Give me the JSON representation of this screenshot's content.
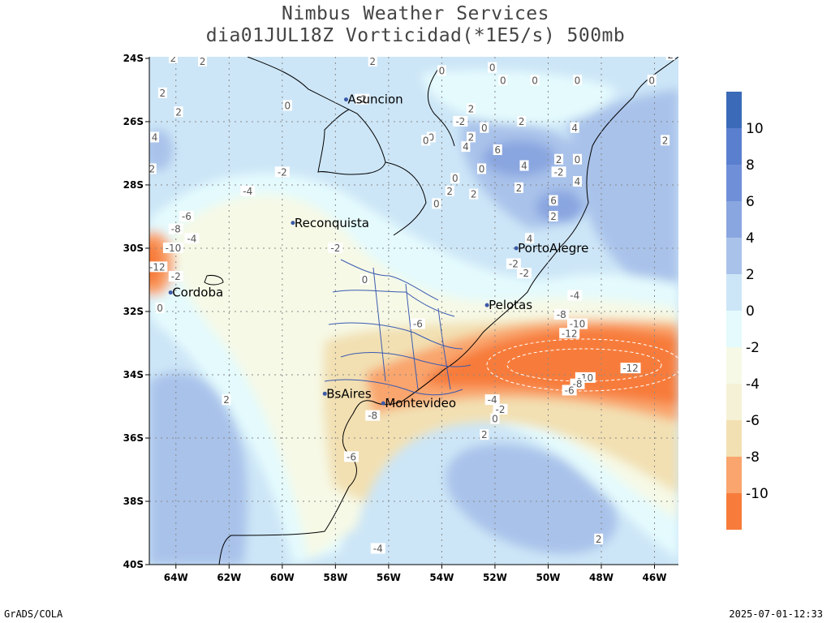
{
  "title": {
    "line1": "Nimbus Weather Services",
    "line2": "dia01JUL18Z Vorticidad(*1E5/s) 500mb"
  },
  "footer": {
    "left": "GrADS/COLA",
    "right": "2025-07-01-12:33"
  },
  "axes": {
    "lat_ticks": [
      "24S",
      "26S",
      "28S",
      "30S",
      "32S",
      "34S",
      "36S",
      "38S",
      "40S"
    ],
    "lon_ticks": [
      "64W",
      "62W",
      "60W",
      "58W",
      "56W",
      "54W",
      "52W",
      "50W",
      "48W",
      "46W"
    ]
  },
  "cities": [
    {
      "name": "Asuncion",
      "lon": -57.6,
      "lat": -25.3
    },
    {
      "name": "Reconquista",
      "lon": -59.6,
      "lat": -29.2
    },
    {
      "name": "Cordoba",
      "lon": -64.2,
      "lat": -31.4
    },
    {
      "name": "PortoAlegre",
      "lon": -51.2,
      "lat": -30.0
    },
    {
      "name": "Pelotas",
      "lon": -52.3,
      "lat": -31.8
    },
    {
      "name": "BsAires",
      "lon": -58.4,
      "lat": -34.6
    },
    {
      "name": "Montevideo",
      "lon": -56.2,
      "lat": -34.9
    }
  ],
  "colorbar": {
    "labels": [
      "10",
      "8",
      "6",
      "4",
      "2",
      "0",
      "-2",
      "-4",
      "-6",
      "-8",
      "-10"
    ],
    "colors": [
      "#3b6ab8",
      "#5a7fcf",
      "#6f8fd8",
      "#8aa6e0",
      "#a9c2ea",
      "#cde6f7",
      "#e4fafd",
      "#f6f9e6",
      "#f5f1d6",
      "#f2e0b2",
      "#f9a56d",
      "#f77c3b"
    ]
  },
  "contour_labels": [
    {
      "text": "2",
      "lon": -64.1,
      "lat": -24.0
    },
    {
      "text": "2",
      "lon": -64.5,
      "lat": -25.1
    },
    {
      "text": "2",
      "lon": -63.0,
      "lat": -24.1
    },
    {
      "text": "2",
      "lon": -63.9,
      "lat": -25.7
    },
    {
      "text": "4",
      "lon": -64.8,
      "lat": -26.5
    },
    {
      "text": "2",
      "lon": -64.9,
      "lat": -27.5
    },
    {
      "text": "0",
      "lon": -59.8,
      "lat": -25.5
    },
    {
      "text": "2",
      "lon": -56.6,
      "lat": -24.1
    },
    {
      "text": "0",
      "lon": -54.0,
      "lat": -24.4
    },
    {
      "text": "0",
      "lon": -52.1,
      "lat": -24.3
    },
    {
      "text": "0",
      "lon": -51.7,
      "lat": -24.7
    },
    {
      "text": "0",
      "lon": -50.5,
      "lat": -24.7
    },
    {
      "text": "0",
      "lon": -48.9,
      "lat": -24.7
    },
    {
      "text": "0",
      "lon": -46.1,
      "lat": -24.7
    },
    {
      "text": "2",
      "lon": -45.4,
      "lat": -23.9
    },
    {
      "text": "-2",
      "lon": -57.0,
      "lat": -25.3
    },
    {
      "text": "2",
      "lon": -52.9,
      "lat": -25.6
    },
    {
      "text": "-2",
      "lon": -53.3,
      "lat": -26.0
    },
    {
      "text": "0",
      "lon": -52.4,
      "lat": -26.2
    },
    {
      "text": "2",
      "lon": -52.9,
      "lat": -26.5
    },
    {
      "text": "0",
      "lon": -54.4,
      "lat": -26.5
    },
    {
      "text": "0",
      "lon": -54.6,
      "lat": -26.6
    },
    {
      "text": "4",
      "lon": -53.1,
      "lat": -26.8
    },
    {
      "text": "2",
      "lon": -51.0,
      "lat": -26.0
    },
    {
      "text": "4",
      "lon": -49.0,
      "lat": -26.2
    },
    {
      "text": "2",
      "lon": -45.6,
      "lat": -26.6
    },
    {
      "text": "6",
      "lon": -51.9,
      "lat": -26.9
    },
    {
      "text": "4",
      "lon": -50.9,
      "lat": -27.4
    },
    {
      "text": "2",
      "lon": -49.6,
      "lat": -27.2
    },
    {
      "text": "0",
      "lon": -48.9,
      "lat": -27.2
    },
    {
      "text": "-2",
      "lon": -49.6,
      "lat": -27.6
    },
    {
      "text": "4",
      "lon": -48.9,
      "lat": -27.9
    },
    {
      "text": "0",
      "lon": -52.5,
      "lat": -27.5
    },
    {
      "text": "0",
      "lon": -53.5,
      "lat": -27.8
    },
    {
      "text": "2",
      "lon": -51.1,
      "lat": -28.1
    },
    {
      "text": "2",
      "lon": -53.7,
      "lat": -28.2
    },
    {
      "text": "2",
      "lon": -52.8,
      "lat": -28.3
    },
    {
      "text": "0",
      "lon": -54.2,
      "lat": -28.6
    },
    {
      "text": "6",
      "lon": -49.8,
      "lat": -28.5
    },
    {
      "text": "2",
      "lon": -49.8,
      "lat": -29.0
    },
    {
      "text": "4",
      "lon": -50.7,
      "lat": -29.7
    },
    {
      "text": "-2",
      "lon": -60.0,
      "lat": -27.6
    },
    {
      "text": "-4",
      "lon": -61.3,
      "lat": -28.2
    },
    {
      "text": "-6",
      "lon": -63.6,
      "lat": -29.0
    },
    {
      "text": "-8",
      "lon": -64.0,
      "lat": -29.4
    },
    {
      "text": "-4",
      "lon": -63.4,
      "lat": -29.7
    },
    {
      "text": "-10",
      "lon": -64.1,
      "lat": -30.0
    },
    {
      "text": "-12",
      "lon": -64.7,
      "lat": -30.6
    },
    {
      "text": "-2",
      "lon": -64.0,
      "lat": -30.9
    },
    {
      "text": "0",
      "lon": -64.6,
      "lat": -31.9
    },
    {
      "text": "-2",
      "lon": -58.0,
      "lat": -30.0
    },
    {
      "text": "0",
      "lon": -56.9,
      "lat": -31.0
    },
    {
      "text": "-2",
      "lon": -51.3,
      "lat": -30.5
    },
    {
      "text": "-2",
      "lon": -50.9,
      "lat": -30.8
    },
    {
      "text": "-4",
      "lon": -49.0,
      "lat": -31.5
    },
    {
      "text": "-6",
      "lon": -54.9,
      "lat": -32.4
    },
    {
      "text": "-8",
      "lon": -49.5,
      "lat": -32.1
    },
    {
      "text": "-10",
      "lon": -48.9,
      "lat": -32.4
    },
    {
      "text": "-12",
      "lon": -49.2,
      "lat": -32.7
    },
    {
      "text": "-12",
      "lon": -46.9,
      "lat": -33.8
    },
    {
      "text": "-10",
      "lon": -48.6,
      "lat": -34.1
    },
    {
      "text": "-8",
      "lon": -48.9,
      "lat": -34.3
    },
    {
      "text": "-6",
      "lon": -49.2,
      "lat": -34.5
    },
    {
      "text": "2",
      "lon": -62.1,
      "lat": -34.8
    },
    {
      "text": "-4",
      "lon": -52.1,
      "lat": -34.8
    },
    {
      "text": "-2",
      "lon": -51.8,
      "lat": -35.1
    },
    {
      "text": "0",
      "lon": -52.0,
      "lat": -35.4
    },
    {
      "text": "-8",
      "lon": -56.6,
      "lat": -35.3
    },
    {
      "text": "2",
      "lon": -52.4,
      "lat": -35.9
    },
    {
      "text": "-6",
      "lon": -57.4,
      "lat": -36.6
    },
    {
      "text": "-4",
      "lon": -56.4,
      "lat": -39.5
    },
    {
      "text": "2",
      "lon": -48.1,
      "lat": -39.2
    }
  ]
}
